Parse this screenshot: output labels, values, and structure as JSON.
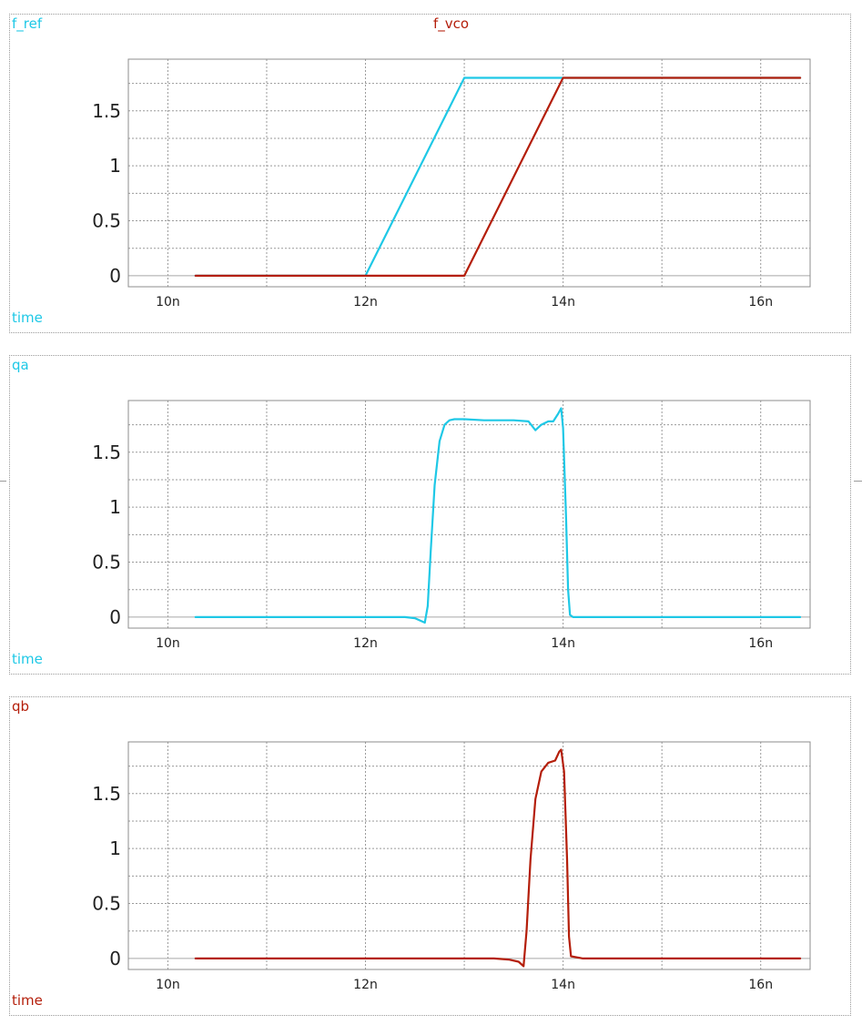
{
  "colors": {
    "cyan": "#1ec8e6",
    "red": "#b41e0a",
    "grid": "#9a9a9a",
    "axis": "#8c8c8c",
    "text": "#222222"
  },
  "chart_data": [
    {
      "type": "line",
      "title": "",
      "xlabel": "time",
      "ylabel": "",
      "labels": [
        "f_ref",
        "f_vco"
      ],
      "xlim": [
        9.6,
        16.5
      ],
      "ylim": [
        -0.1,
        1.97
      ],
      "x_ticks": [
        10,
        12,
        14,
        16
      ],
      "x_tick_labels": [
        "10n",
        "12n",
        "14n",
        "16n"
      ],
      "y_ticks": [
        0,
        0.5,
        1,
        1.5
      ],
      "y_tick_labels": [
        "0",
        "0.5",
        "1",
        "1.5"
      ],
      "grid": true,
      "series": [
        {
          "name": "f_ref",
          "color": "#1ec8e6",
          "x": [
            10.28,
            12.0,
            13.0,
            16.4
          ],
          "y": [
            0,
            0,
            1.8,
            1.8
          ]
        },
        {
          "name": "f_vco",
          "color": "#b41e0a",
          "x": [
            10.28,
            13.0,
            14.0,
            16.4
          ],
          "y": [
            0,
            0,
            1.8,
            1.8
          ]
        }
      ]
    },
    {
      "type": "line",
      "title": "",
      "xlabel": "time",
      "ylabel": "",
      "labels": [
        "qa"
      ],
      "xlim": [
        9.6,
        16.5
      ],
      "ylim": [
        -0.1,
        1.97
      ],
      "x_ticks": [
        10,
        12,
        14,
        16
      ],
      "x_tick_labels": [
        "10n",
        "12n",
        "14n",
        "16n"
      ],
      "y_ticks": [
        0,
        0.5,
        1,
        1.5
      ],
      "y_tick_labels": [
        "0",
        "0.5",
        "1",
        "1.5"
      ],
      "grid": true,
      "series": [
        {
          "name": "qa",
          "color": "#1ec8e6",
          "x": [
            10.28,
            12.4,
            12.5,
            12.55,
            12.6,
            12.63,
            12.66,
            12.7,
            12.75,
            12.8,
            12.85,
            12.9,
            13.0,
            13.2,
            13.5,
            13.65,
            13.72,
            13.78,
            13.85,
            13.9,
            13.95,
            13.98,
            14.0,
            14.03,
            14.05,
            14.07,
            14.1,
            14.2,
            16.4
          ],
          "y": [
            0,
            0,
            -0.01,
            -0.03,
            -0.05,
            0.1,
            0.6,
            1.2,
            1.6,
            1.75,
            1.79,
            1.8,
            1.8,
            1.79,
            1.79,
            1.78,
            1.7,
            1.75,
            1.78,
            1.78,
            1.85,
            1.9,
            1.72,
            0.9,
            0.25,
            0.02,
            0,
            0,
            0
          ]
        }
      ]
    },
    {
      "type": "line",
      "title": "",
      "xlabel": "time",
      "ylabel": "",
      "labels": [
        "qb"
      ],
      "xlim": [
        9.6,
        16.5
      ],
      "ylim": [
        -0.1,
        1.97
      ],
      "x_ticks": [
        10,
        12,
        14,
        16
      ],
      "x_tick_labels": [
        "10n",
        "12n",
        "14n",
        "16n"
      ],
      "y_ticks": [
        0,
        0.5,
        1,
        1.5
      ],
      "y_tick_labels": [
        "0",
        "0.5",
        "1",
        "1.5"
      ],
      "grid": true,
      "series": [
        {
          "name": "qb",
          "color": "#b41e0a",
          "x": [
            10.28,
            13.3,
            13.45,
            13.55,
            13.6,
            13.63,
            13.67,
            13.72,
            13.78,
            13.85,
            13.92,
            13.96,
            13.98,
            14.01,
            14.04,
            14.06,
            14.08,
            14.2,
            16.4
          ],
          "y": [
            0,
            0,
            -0.01,
            -0.03,
            -0.07,
            0.25,
            0.9,
            1.45,
            1.7,
            1.78,
            1.8,
            1.88,
            1.9,
            1.7,
            0.9,
            0.2,
            0.02,
            0,
            0
          ]
        }
      ]
    }
  ]
}
